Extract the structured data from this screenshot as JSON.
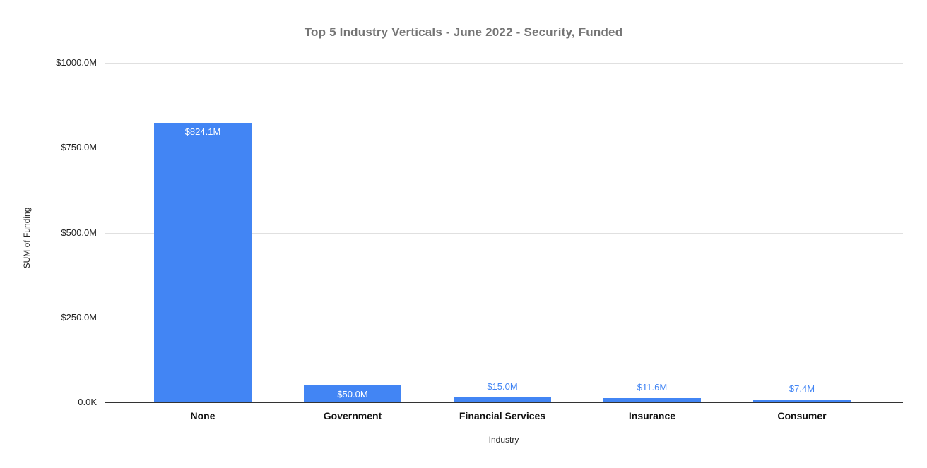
{
  "chart_data": {
    "type": "bar",
    "title": "Top 5 Industry Verticals - June 2022 - Security, Funded",
    "categories": [
      "None",
      "Government",
      "Financial Services",
      "Insurance",
      "Consumer"
    ],
    "values": [
      824.1,
      50.0,
      15.0,
      11.6,
      7.4
    ],
    "bar_labels": [
      "$824.1M",
      "$50.0M",
      "$15.0M",
      "$11.6M",
      "$7.4M"
    ],
    "xlabel": "Industry",
    "ylabel": "SUM of Funding",
    "ylim": [
      0,
      1000
    ],
    "y_ticks_top_to_bottom": [
      "$1000.0M",
      "$750.0M",
      "$500.0M",
      "$250.0M",
      "0.0K"
    ],
    "grid": true,
    "legend": "none",
    "colors": {
      "bar": "#4285f4",
      "label_inside_bar": "#ffffff",
      "label_above_bar": "#4285f4",
      "title_text": "#757575",
      "gridline": "#e0e0e0",
      "baseline": "#333333"
    }
  }
}
